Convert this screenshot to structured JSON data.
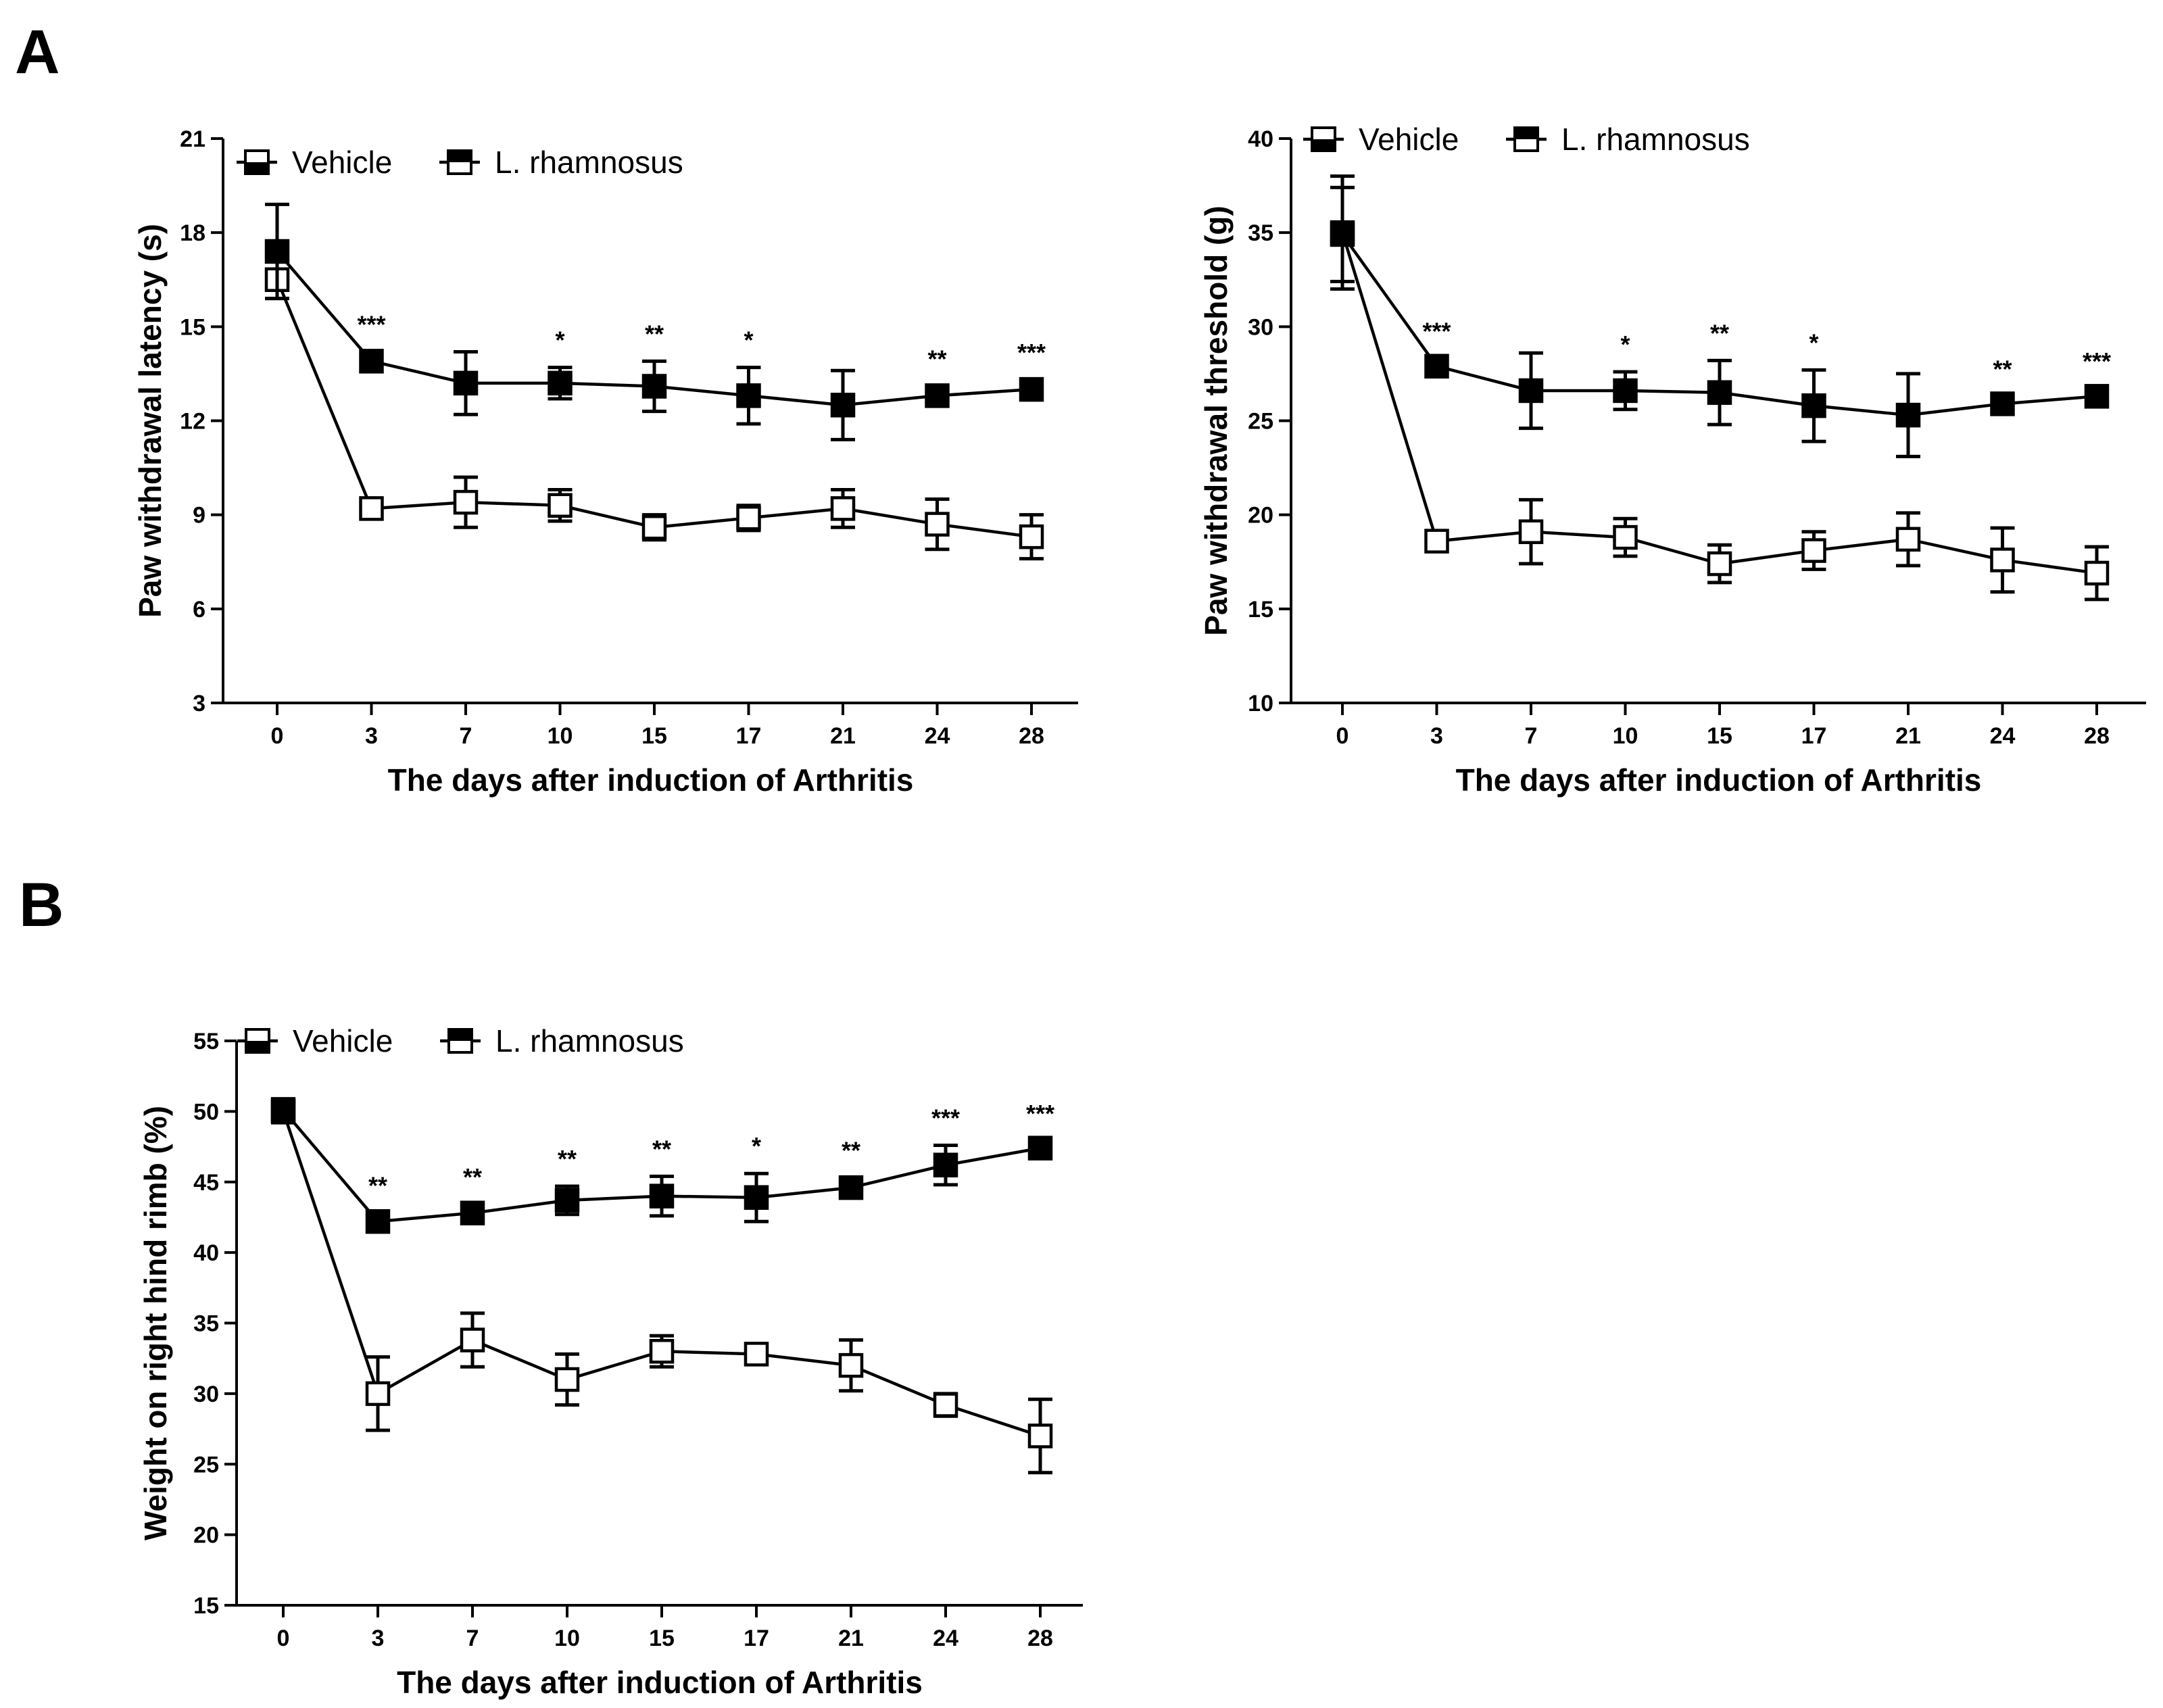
{
  "panel_labels": [
    "A",
    "B"
  ],
  "chart_data": [
    {
      "type": "line",
      "panel": "A",
      "xlabel": "The days after induction of Arthritis",
      "ylabel": "Paw withdrawal latency (s)",
      "categories": [
        "0",
        "3",
        "7",
        "10",
        "15",
        "17",
        "21",
        "24",
        "28"
      ],
      "yticks": [
        "3",
        "6",
        "9",
        "12",
        "15",
        "18",
        "21"
      ],
      "ylim": [
        3,
        21
      ],
      "legend": [
        "Vehicle",
        "L. rhamnosus"
      ],
      "series": [
        {
          "name": "Vehicle",
          "values": [
            16.5,
            9.2,
            9.4,
            9.3,
            8.6,
            8.9,
            9.2,
            8.7,
            8.3
          ],
          "errors": [
            0.6,
            0.3,
            0.8,
            0.5,
            0.4,
            0.4,
            0.6,
            0.8,
            0.7
          ]
        },
        {
          "name": "L. rhamnosus",
          "values": [
            17.4,
            13.9,
            13.2,
            13.2,
            13.1,
            12.8,
            12.5,
            12.8,
            13.0
          ],
          "errors": [
            1.5,
            0.3,
            1.0,
            0.5,
            0.8,
            0.9,
            1.1,
            0.3,
            0.3
          ]
        }
      ],
      "significance": [
        "",
        "***",
        "",
        "*",
        "**",
        "*",
        "",
        "**",
        "***"
      ]
    },
    {
      "type": "line",
      "panel": "A",
      "xlabel": "The days after induction of Arthritis",
      "ylabel": "Paw withdrawal threshold (g)",
      "categories": [
        "0",
        "3",
        "7",
        "10",
        "15",
        "17",
        "21",
        "24",
        "28"
      ],
      "yticks": [
        "10",
        "15",
        "20",
        "25",
        "30",
        "35",
        "40"
      ],
      "ylim": [
        10,
        40
      ],
      "legend": [
        "Vehicle",
        "L. rhamnosus"
      ],
      "series": [
        {
          "name": "Vehicle",
          "values": [
            35.0,
            18.6,
            19.1,
            18.8,
            17.4,
            18.1,
            18.7,
            17.6,
            16.9
          ],
          "errors": [
            3.0,
            0.4,
            1.7,
            1.0,
            1.0,
            1.0,
            1.4,
            1.7,
            1.4
          ]
        },
        {
          "name": "L. rhamnosus",
          "values": [
            34.9,
            27.9,
            26.6,
            26.6,
            26.5,
            25.8,
            25.3,
            25.9,
            26.3
          ],
          "errors": [
            2.5,
            0.4,
            2.0,
            1.0,
            1.7,
            1.9,
            2.2,
            0.4,
            0.4
          ]
        }
      ],
      "significance": [
        "",
        "***",
        "",
        "*",
        "**",
        "*",
        "",
        "**",
        "***"
      ]
    },
    {
      "type": "line",
      "panel": "B",
      "xlabel": "The days after induction of Arthritis",
      "ylabel": "Weight on right hind rimb (%)",
      "categories": [
        "0",
        "3",
        "7",
        "10",
        "15",
        "17",
        "21",
        "24",
        "28"
      ],
      "yticks": [
        "15",
        "20",
        "25",
        "30",
        "35",
        "40",
        "45",
        "50",
        "55"
      ],
      "ylim": [
        15,
        55
      ],
      "legend": [
        "Vehicle",
        "L. rhamnosus"
      ],
      "series": [
        {
          "name": "Vehicle",
          "values": [
            50.0,
            30.0,
            33.8,
            31.0,
            33.0,
            32.8,
            32.0,
            29.2,
            27.0
          ],
          "errors": [
            0.8,
            2.6,
            1.9,
            1.8,
            1.1,
            0.6,
            1.8,
            0.8,
            2.6
          ]
        },
        {
          "name": "L. rhamnosus",
          "values": [
            50.1,
            42.2,
            42.8,
            43.7,
            44.0,
            43.9,
            44.6,
            46.2,
            47.4
          ],
          "errors": [
            0.8,
            0.6,
            0.6,
            1.0,
            1.4,
            1.7,
            0.7,
            1.4,
            0.5
          ]
        }
      ],
      "significance": [
        "",
        "**",
        "**",
        "**",
        "**",
        "*",
        "**",
        "***",
        "***"
      ]
    }
  ]
}
